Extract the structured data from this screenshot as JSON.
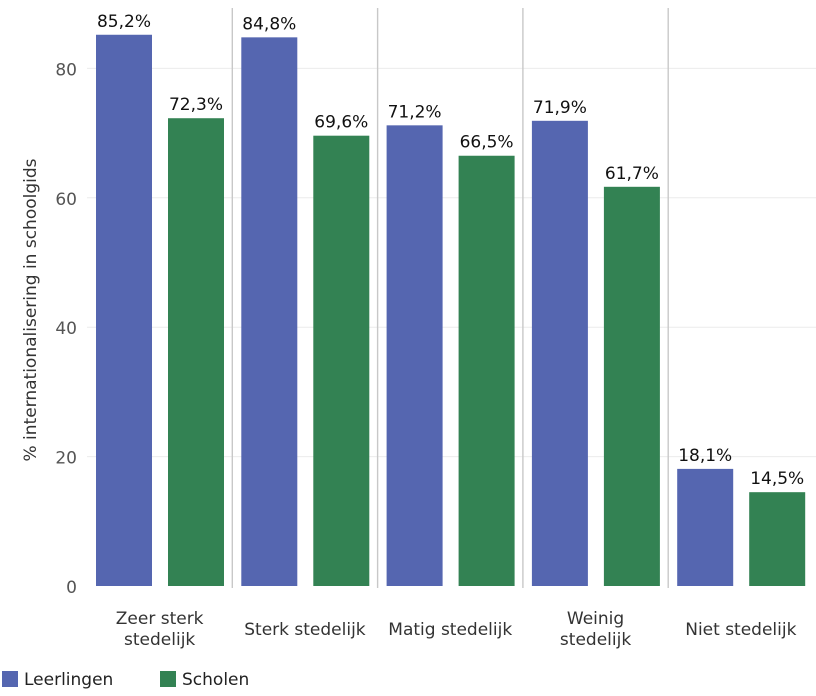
{
  "chart_data": {
    "type": "bar",
    "title": "",
    "xlabel": "",
    "ylabel": "% internationalisering in schoolgids",
    "ylim": [
      0,
      88
    ],
    "yticks": [
      0,
      20,
      40,
      60,
      80
    ],
    "grid": true,
    "legend_position": "bottom-left",
    "categories": [
      [
        "Zeer sterk",
        "stedelijk"
      ],
      [
        "Sterk stedelijk"
      ],
      [
        "Matig stedelijk"
      ],
      [
        "Weinig",
        "stedelijk"
      ],
      [
        "Niet stedelijk"
      ]
    ],
    "series": [
      {
        "name": "Leerlingen",
        "color": "#5566b0",
        "values": [
          85.2,
          84.8,
          71.2,
          71.9,
          18.1
        ],
        "labels": [
          "85,2%",
          "84,8%",
          "71,2%",
          "71,9%",
          "18,1%"
        ]
      },
      {
        "name": "Scholen",
        "color": "#338253",
        "values": [
          72.3,
          69.6,
          66.5,
          61.7,
          14.5
        ],
        "labels": [
          "72,3%",
          "69,6%",
          "66,5%",
          "61,7%",
          "14,5%"
        ]
      }
    ]
  }
}
